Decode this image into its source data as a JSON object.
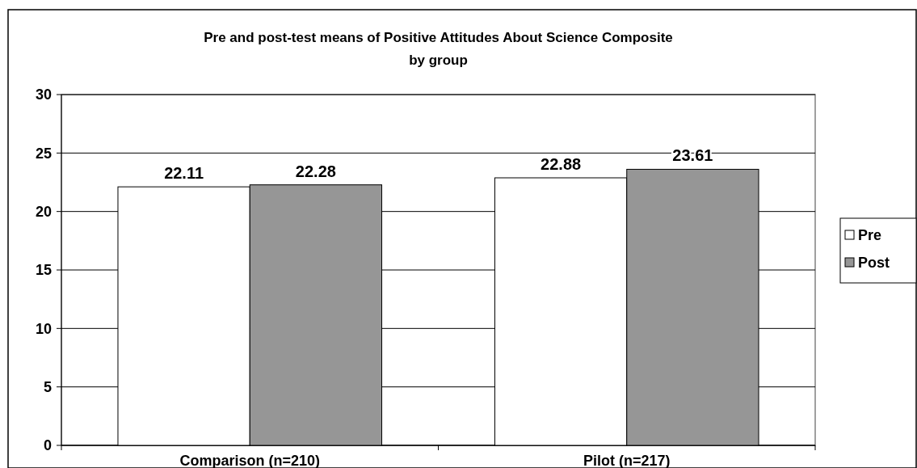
{
  "chart_data": {
    "type": "bar",
    "title": "Pre and post-test means of Positive Attitudes About Science Composite by group",
    "categories": [
      "Comparison (n=210)",
      "Pilot (n=217)"
    ],
    "series": [
      {
        "name": "Pre",
        "color": "#ffffff",
        "values": [
          22.11,
          22.88
        ]
      },
      {
        "name": "Post",
        "color": "#969696",
        "values": [
          22.28,
          23.61
        ]
      }
    ],
    "ylim": [
      0,
      30
    ],
    "yticks": [
      0,
      5,
      10,
      15,
      20,
      25,
      30
    ],
    "grid": "y",
    "legend": "right",
    "data_labels": true
  }
}
